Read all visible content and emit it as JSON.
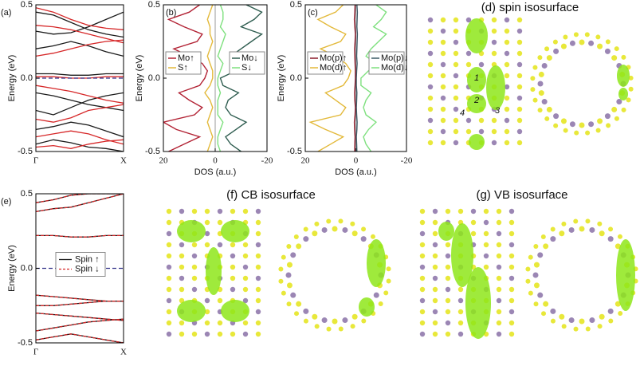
{
  "chart_data": [
    {
      "type": "bands",
      "label": "(a)",
      "ylabel": "Energy (eV)",
      "x": [
        0,
        0.2,
        0.4,
        0.6,
        0.8,
        1
      ],
      "xlim": [
        0,
        1
      ],
      "xticks": [
        {
          "value": 0,
          "label": "Γ"
        },
        {
          "value": 1,
          "label": "X"
        }
      ],
      "ylim": [
        -0.5,
        0.5
      ],
      "yticks": [
        -0.5,
        {
          "value": 0,
          "label": "0.0"
        },
        0.5
      ],
      "fermi": 0,
      "series": [
        {
          "color": "#1a1a1a",
          "bands": [
            [
              0.45,
              0.43,
              0.38,
              0.33,
              0.3,
              0.28
            ],
            [
              0.32,
              0.3,
              0.31,
              0.35,
              0.4,
              0.45
            ],
            [
              0.2,
              0.22,
              0.25,
              0.22,
              0.18,
              0.15
            ],
            [
              0.03,
              0.03,
              0.02,
              0.02,
              0.03,
              0.03
            ],
            [
              -0.1,
              -0.12,
              -0.15,
              -0.18,
              -0.2,
              -0.22
            ],
            [
              -0.22,
              -0.25,
              -0.2,
              -0.15,
              -0.12,
              -0.1
            ],
            [
              -0.35,
              -0.33,
              -0.3,
              -0.32,
              -0.36,
              -0.4
            ],
            [
              -0.45,
              -0.42,
              -0.44,
              -0.47,
              -0.48,
              -0.5
            ]
          ]
        },
        {
          "color": "#d62728",
          "bands": [
            [
              0.48,
              0.45,
              0.4,
              0.36,
              0.34,
              0.33
            ],
            [
              0.36,
              0.35,
              0.33,
              0.3,
              0.27,
              0.24
            ],
            [
              0.15,
              0.17,
              0.2,
              0.23,
              0.25,
              0.26
            ],
            [
              0.01,
              0.01,
              0.0,
              0.0,
              0.01,
              0.01
            ],
            [
              -0.05,
              -0.07,
              -0.09,
              -0.12,
              -0.15,
              -0.17
            ],
            [
              -0.28,
              -0.3,
              -0.27,
              -0.22,
              -0.2,
              -0.18
            ],
            [
              -0.4,
              -0.38,
              -0.36,
              -0.38,
              -0.42,
              -0.45
            ],
            [
              -0.47,
              -0.46,
              -0.48,
              -0.45,
              -0.43,
              -0.42
            ]
          ]
        }
      ]
    },
    {
      "type": "dos",
      "label": "(b)",
      "ylabel": "Energy (eV)",
      "xlabel": "DOS (a.u.)",
      "xlim": [
        20,
        -20
      ],
      "xticks": [
        20,
        0,
        -20
      ],
      "ylim": [
        -0.5,
        0.5
      ],
      "yticks": [
        -0.5,
        {
          "value": 0,
          "label": "0.0"
        },
        0.5
      ],
      "energy": [
        -0.5,
        -0.45,
        -0.4,
        -0.35,
        -0.3,
        -0.25,
        -0.2,
        -0.15,
        -0.1,
        -0.05,
        0,
        0.05,
        0.1,
        0.15,
        0.2,
        0.25,
        0.3,
        0.35,
        0.4,
        0.45,
        0.5
      ],
      "series": [
        {
          "name": "Mo↑",
          "color": "#b22234",
          "values": [
            18,
            12,
            6,
            15,
            20,
            8,
            5,
            10,
            14,
            6,
            4,
            3,
            5,
            10,
            16,
            7,
            5,
            12,
            18,
            10,
            6
          ]
        },
        {
          "name": "S↑",
          "color": "#e3b93a",
          "values": [
            3,
            2,
            1,
            2,
            3,
            2,
            1,
            2,
            4,
            2,
            1,
            1,
            2,
            3,
            2,
            1,
            2,
            2,
            3,
            2,
            1
          ]
        },
        {
          "name": "Mo↓",
          "color": "#2f5d50",
          "values": [
            -10,
            -6,
            -4,
            -8,
            -12,
            -6,
            -4,
            -5,
            -9,
            -3,
            -2,
            -8,
            -12,
            -6,
            -10,
            -14,
            -18,
            -10,
            -15,
            -18,
            -12
          ]
        },
        {
          "name": "S↓",
          "color": "#7ee07e",
          "values": [
            -2,
            -1,
            -1,
            -2,
            -3,
            -1,
            -1,
            -1,
            -2,
            -1,
            -1,
            -2,
            -3,
            -1,
            -2,
            -3,
            -4,
            -2,
            -3,
            -3,
            -2
          ]
        }
      ]
    },
    {
      "type": "dos",
      "label": "(c)",
      "ylabel": "Energy (eV)",
      "xlabel": "DOS (a.u.)",
      "xlim": [
        20,
        -20
      ],
      "xticks": [
        20,
        0,
        -20
      ],
      "ylim": [
        -0.5,
        0.5
      ],
      "yticks": [
        -0.5,
        {
          "value": 0,
          "label": "0.0"
        },
        0.5
      ],
      "energy": [
        -0.5,
        -0.45,
        -0.4,
        -0.35,
        -0.3,
        -0.25,
        -0.2,
        -0.15,
        -0.1,
        -0.05,
        0,
        0.05,
        0.1,
        0.15,
        0.2,
        0.25,
        0.3,
        0.35,
        0.4,
        0.45,
        0.5
      ],
      "series": [
        {
          "name": "Mo(p)↑",
          "color": "#8b1a2b",
          "values": [
            0.5,
            0.4,
            0.3,
            0.5,
            0.6,
            0.3,
            0.2,
            0.4,
            0.5,
            0.3,
            0.2,
            0.2,
            0.3,
            0.4,
            0.5,
            0.3,
            0.2,
            0.4,
            0.6,
            0.4,
            0.3
          ]
        },
        {
          "name": "Mo(d)↑",
          "color": "#e3b93a",
          "values": [
            15,
            10,
            5,
            12,
            18,
            6,
            4,
            8,
            12,
            5,
            3,
            2,
            4,
            8,
            14,
            6,
            4,
            10,
            15,
            8,
            5
          ]
        },
        {
          "name": "Mo(p)↓",
          "color": "#3c5a66",
          "values": [
            -0.4,
            -0.3,
            -0.2,
            -0.4,
            -0.5,
            -0.3,
            -0.2,
            -0.3,
            -0.4,
            -0.2,
            -0.2,
            -0.3,
            -0.5,
            -0.3,
            -0.4,
            -0.5,
            -0.6,
            -0.4,
            -0.5,
            -0.6,
            -0.4
          ]
        },
        {
          "name": "Mo(d)↓",
          "color": "#7ee07e",
          "values": [
            -6,
            -4,
            -3,
            -5,
            -8,
            -4,
            -3,
            -4,
            -6,
            -2,
            -2,
            -5,
            -8,
            -4,
            -6,
            -9,
            -12,
            -7,
            -10,
            -12,
            -8
          ]
        }
      ]
    },
    {
      "type": "bands",
      "label": "(e)",
      "ylabel": "Energy (eV)",
      "legend": "center",
      "x": [
        0,
        0.2,
        0.4,
        0.6,
        0.8,
        1
      ],
      "xlim": [
        0,
        1
      ],
      "xticks": [
        {
          "value": 0,
          "label": "Γ"
        },
        {
          "value": 1,
          "label": "X"
        }
      ],
      "ylim": [
        -0.5,
        0.5
      ],
      "yticks": [
        -0.5,
        {
          "value": 0,
          "label": "0.0"
        },
        0.5
      ],
      "fermi": 0,
      "series": [
        {
          "name": "Spin ↑",
          "color": "#1a1a1a",
          "dash": false,
          "bands": [
            [
              0.44,
              0.46,
              0.49,
              0.5,
              0.5,
              0.5
            ],
            [
              0.38,
              0.4,
              0.41,
              0.44,
              0.47,
              0.5
            ],
            [
              0.22,
              0.22,
              0.21,
              0.21,
              0.22,
              0.22
            ],
            [
              -0.18,
              -0.19,
              -0.2,
              -0.21,
              -0.22,
              -0.22
            ],
            [
              -0.25,
              -0.25,
              -0.24,
              -0.23,
              -0.22,
              -0.22
            ],
            [
              -0.3,
              -0.31,
              -0.32,
              -0.33,
              -0.34,
              -0.35
            ],
            [
              -0.42,
              -0.4,
              -0.38,
              -0.36,
              -0.35,
              -0.34
            ],
            [
              -0.48,
              -0.46,
              -0.44,
              -0.46,
              -0.48,
              -0.5
            ]
          ]
        },
        {
          "name": "Spin ↓",
          "color": "#d62728",
          "dash": true,
          "bands": [
            [
              0.44,
              0.46,
              0.49,
              0.5,
              0.5,
              0.5
            ],
            [
              0.38,
              0.4,
              0.41,
              0.44,
              0.47,
              0.5
            ],
            [
              0.22,
              0.22,
              0.21,
              0.21,
              0.22,
              0.22
            ],
            [
              -0.18,
              -0.19,
              -0.2,
              -0.21,
              -0.22,
              -0.22
            ],
            [
              -0.25,
              -0.25,
              -0.24,
              -0.23,
              -0.22,
              -0.22
            ],
            [
              -0.3,
              -0.31,
              -0.32,
              -0.33,
              -0.34,
              -0.35
            ],
            [
              -0.42,
              -0.4,
              -0.38,
              -0.36,
              -0.35,
              -0.34
            ],
            [
              -0.48,
              -0.46,
              -0.44,
              -0.46,
              -0.48,
              -0.5
            ]
          ]
        }
      ]
    }
  ],
  "images": [
    {
      "title": "(d) spin isosurface",
      "markers": [
        "1",
        "2",
        "3",
        "4"
      ]
    },
    {
      "title": "(f) CB isosurface"
    },
    {
      "title": "(g) VB isosurface"
    }
  ]
}
